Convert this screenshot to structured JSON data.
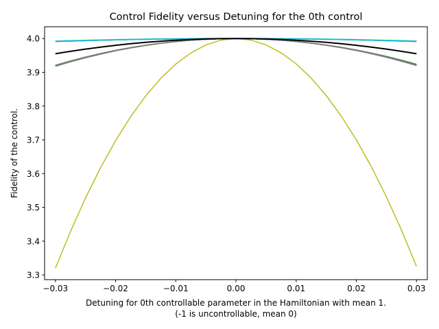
{
  "chart_data": {
    "type": "line",
    "title": "Control Fidelity versus Detuning for the 0th control",
    "xlabel": "Detuning for 0th controllable parameter in the Hamiltonian with mean 1.",
    "xlabel2": "(-1 is uncontrollable, mean 0)",
    "ylabel": "Fidelity of the control.",
    "xlim": [
      -0.0318,
      0.0318
    ],
    "ylim": [
      3.286,
      4.035
    ],
    "xticks": [
      -0.03,
      -0.02,
      -0.01,
      0.0,
      0.01,
      0.02,
      0.03
    ],
    "xtick_labels": [
      "−0.03",
      "−0.02",
      "−0.01",
      "0.00",
      "0.01",
      "0.02",
      "0.03"
    ],
    "yticks": [
      3.3,
      3.4,
      3.5,
      3.6,
      3.7,
      3.8,
      3.9,
      4.0
    ],
    "ytick_labels": [
      "3.3",
      "3.4",
      "3.5",
      "3.6",
      "3.7",
      "3.8",
      "3.9",
      "4.0"
    ],
    "grid": false,
    "legend": "none",
    "x_range": [
      -0.03,
      0.03
    ],
    "x_points": 25,
    "series": [
      {
        "color": "#2ca02c",
        "width": 1.5,
        "peak": 4.0,
        "end_left": 3.918,
        "end_right": 3.924
      },
      {
        "color": "#d62728",
        "width": 1.5,
        "peak": 4.0,
        "end_left": 3.921,
        "end_right": 3.921
      },
      {
        "color": "#9467bd",
        "width": 1.5,
        "peak": 4.0,
        "end_left": 3.92,
        "end_right": 3.92
      },
      {
        "color": "#8c564b",
        "width": 1.5,
        "peak": 4.0,
        "end_left": 3.921,
        "end_right": 3.922
      },
      {
        "color": "#7f7f7f",
        "width": 1.5,
        "peak": 4.0,
        "end_left": 3.921,
        "end_right": 3.921
      },
      {
        "color": "#1f77b4",
        "width": 1.5,
        "peak": 4.0,
        "end_left": 3.991,
        "end_right": 3.991
      },
      {
        "color": "#ff7f0e",
        "width": 1.5,
        "peak": 4.0,
        "end_left": 3.991,
        "end_right": 3.991
      },
      {
        "color": "#e377c2",
        "width": 1.5,
        "peak": 4.0,
        "end_left": 3.991,
        "end_right": 3.991
      },
      {
        "color": "#17becf",
        "width": 2.0,
        "peak": 4.0,
        "end_left": 3.992,
        "end_right": 3.992
      },
      {
        "color": "#bcbd22",
        "width": 1.5,
        "peak": 4.0,
        "end_left": 3.32,
        "end_right": 3.325
      },
      {
        "color": "#000000",
        "width": 2.0,
        "peak": 4.0,
        "end_left": 3.955,
        "end_right": 3.955
      }
    ]
  }
}
